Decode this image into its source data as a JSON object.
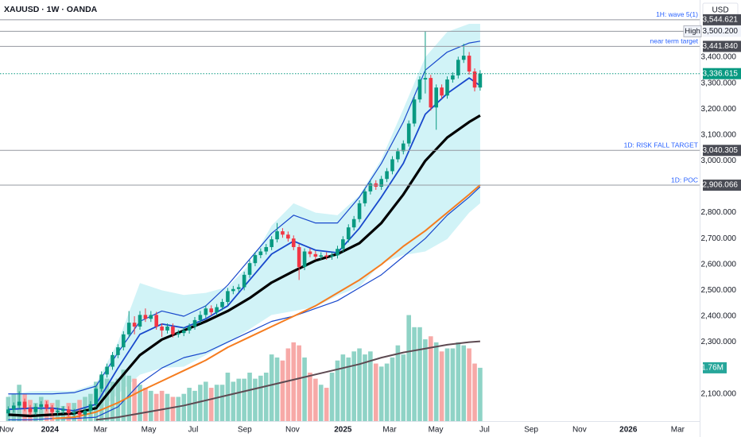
{
  "chart_data": {
    "type": "candlestick",
    "title": "XAUUSD · 1W · OANDA",
    "currency": "USD",
    "up_color": "#089981",
    "down_color": "#f23645",
    "xlim": [
      -1.5,
      126
    ],
    "ylim": [
      1995,
      3621
    ],
    "yticks": [
      {
        "value": 2100,
        "label": "2,100.000"
      },
      {
        "value": 2300,
        "label": "2,300.000"
      },
      {
        "value": 2400,
        "label": "2,400.000"
      },
      {
        "value": 2500,
        "label": "2,500.000"
      },
      {
        "value": 2600,
        "label": "2,600.000"
      },
      {
        "value": 2700,
        "label": "2,700.000"
      },
      {
        "value": 2800,
        "label": "2,800.000"
      },
      {
        "value": 3000,
        "label": "3,000.000"
      },
      {
        "value": 3100,
        "label": "3,100.000"
      },
      {
        "value": 3200,
        "label": "3,200.000"
      },
      {
        "value": 3300,
        "label": "3,300.000"
      },
      {
        "value": 3400,
        "label": "3,400.000"
      }
    ],
    "xticks": [
      {
        "value": -0.3,
        "label": "Nov"
      },
      {
        "value": 7.6,
        "label": "2024"
      },
      {
        "value": 16.8,
        "label": "Mar"
      },
      {
        "value": 25.6,
        "label": "May"
      },
      {
        "value": 33.7,
        "label": "Jul"
      },
      {
        "value": 43.1,
        "label": "Sep"
      },
      {
        "value": 51.8,
        "label": "Nov"
      },
      {
        "value": 61,
        "label": "2025"
      },
      {
        "value": 69.5,
        "label": "Mar"
      },
      {
        "value": 77.9,
        "label": "May"
      },
      {
        "value": 86.8,
        "label": "Jul"
      },
      {
        "value": 95.3,
        "label": "Sep"
      },
      {
        "value": 104.1,
        "label": "Nov"
      },
      {
        "value": 113,
        "label": "2026"
      },
      {
        "value": 122,
        "label": "Mar"
      }
    ],
    "x": [
      0,
      1,
      2,
      3,
      4,
      5,
      6,
      7,
      8,
      9,
      10,
      11,
      12,
      13,
      14,
      15,
      16,
      17,
      18,
      19,
      20,
      21,
      22,
      23,
      24,
      25,
      26,
      27,
      28,
      29,
      30,
      31,
      32,
      33,
      34,
      35,
      36,
      37,
      38,
      39,
      40,
      41,
      42,
      43,
      44,
      45,
      46,
      47,
      48,
      49,
      50,
      51,
      52,
      53,
      54,
      55,
      56,
      57,
      58,
      59,
      60,
      61,
      62,
      63,
      64,
      65,
      66,
      67,
      68,
      69,
      70,
      71,
      72,
      73,
      74,
      75,
      76,
      77,
      78,
      79,
      80,
      81,
      82,
      83,
      84,
      85,
      86
    ],
    "open": [
      2025,
      2040,
      2055,
      2070,
      2045,
      2030,
      2050,
      2060,
      2045,
      2030,
      2035,
      2040,
      2025,
      2030,
      2020,
      2035,
      2060,
      2120,
      2175,
      2205,
      2250,
      2280,
      2330,
      2375,
      2360,
      2405,
      2390,
      2405,
      2360,
      2345,
      2360,
      2330,
      2335,
      2345,
      2360,
      2385,
      2405,
      2430,
      2415,
      2435,
      2455,
      2497,
      2505,
      2512,
      2560,
      2605,
      2636,
      2650,
      2667,
      2697,
      2728,
      2715,
      2700,
      2667,
      2590,
      2650,
      2640,
      2630,
      2635,
      2630,
      2635,
      2660,
      2697,
      2743,
      2775,
      2836,
      2882,
      2913,
      2900,
      2930,
      2960,
      3006,
      3037,
      3067,
      3144,
      3237,
      3314,
      3320,
      3206,
      3283,
      3252,
      3314,
      3330,
      3390,
      3406,
      3345,
      3283
    ],
    "high": [
      2052,
      2067,
      2110,
      2082,
      2057,
      2062,
      2072,
      2072,
      2057,
      2047,
      2052,
      2052,
      2042,
      2042,
      2047,
      2072,
      2132,
      2187,
      2217,
      2262,
      2292,
      2342,
      2420,
      2400,
      2420,
      2430,
      2420,
      2417,
      2372,
      2372,
      2372,
      2347,
      2357,
      2372,
      2397,
      2420,
      2442,
      2442,
      2447,
      2467,
      2509,
      2517,
      2524,
      2572,
      2617,
      2648,
      2662,
      2679,
      2709,
      2760,
      2740,
      2727,
      2712,
      2679,
      2662,
      2662,
      2652,
      2647,
      2647,
      2647,
      2672,
      2709,
      2755,
      2787,
      2848,
      2894,
      2925,
      2925,
      2942,
      2972,
      3018,
      3049,
      3079,
      3156,
      3249,
      3326,
      3500.2,
      3332,
      3295,
      3295,
      3326,
      3342,
      3402,
      3452,
      3420,
      3357,
      3350
    ],
    "low": [
      2013,
      2028,
      2043,
      2033,
      2018,
      2018,
      2038,
      2033,
      2018,
      2018,
      2023,
      2013,
      2013,
      2008,
      2008,
      2023,
      2048,
      2108,
      2163,
      2193,
      2238,
      2268,
      2318,
      2330,
      2348,
      2378,
      2378,
      2348,
      2320,
      2333,
      2318,
      2318,
      2323,
      2333,
      2348,
      2373,
      2393,
      2403,
      2403,
      2423,
      2443,
      2485,
      2493,
      2500,
      2548,
      2593,
      2624,
      2638,
      2655,
      2685,
      2703,
      2688,
      2655,
      2540,
      2578,
      2628,
      2618,
      2618,
      2618,
      2618,
      2623,
      2648,
      2685,
      2731,
      2763,
      2824,
      2870,
      2888,
      2888,
      2918,
      2948,
      2994,
      3025,
      3055,
      3132,
      3225,
      3260,
      3194,
      3120,
      3240,
      3240,
      3302,
      3318,
      3378,
      3333,
      3268,
      3271
    ],
    "close": [
      2040,
      2055,
      2070,
      2045,
      2030,
      2050,
      2060,
      2045,
      2030,
      2035,
      2040,
      2025,
      2030,
      2020,
      2035,
      2060,
      2120,
      2175,
      2205,
      2250,
      2280,
      2330,
      2375,
      2360,
      2405,
      2390,
      2405,
      2360,
      2345,
      2360,
      2330,
      2335,
      2345,
      2360,
      2385,
      2405,
      2430,
      2415,
      2435,
      2455,
      2497,
      2505,
      2512,
      2560,
      2605,
      2636,
      2650,
      2667,
      2697,
      2728,
      2715,
      2700,
      2667,
      2590,
      2650,
      2640,
      2630,
      2635,
      2630,
      2635,
      2660,
      2697,
      2743,
      2775,
      2836,
      2882,
      2913,
      2900,
      2930,
      2960,
      3006,
      3037,
      3067,
      3144,
      3237,
      3314,
      3320,
      3206,
      3283,
      3252,
      3314,
      3330,
      3390,
      3406,
      3345,
      3283,
      3336.615
    ],
    "volume": {
      "ylim": [
        0,
        13.9
      ],
      "up_color": "#8fd3c6",
      "down_color": "#f7a9a7",
      "last_color": "#26a69a",
      "last_label": "1.76M",
      "values": [
        0.8,
        0.9,
        1.2,
        0.9,
        0.7,
        0.6,
        0.8,
        0.7,
        0.6,
        0.7,
        0.5,
        0.6,
        0.6,
        0.7,
        0.8,
        0.9,
        1.3,
        1.5,
        1.4,
        1.3,
        1.4,
        1.7,
        1.5,
        1.4,
        1.2,
        1.1,
        1.0,
        0.9,
        1.0,
        0.9,
        0.8,
        0.8,
        0.9,
        1.1,
        1.0,
        1.2,
        1.3,
        1.1,
        1.2,
        1.2,
        1.6,
        1.3,
        1.4,
        1.4,
        1.6,
        1.4,
        1.5,
        1.6,
        2.2,
        2.1,
        2.0,
        2.4,
        2.6,
        2.5,
        2.1,
        1.6,
        1.4,
        1.2,
        1.1,
        1.6,
        2.0,
        2.2,
        2.1,
        2.3,
        2.4,
        2.2,
        2.3,
        1.9,
        1.8,
        1.9,
        2.1,
        2.5,
        2.2,
        3.5,
        3.1,
        3.1,
        2.7,
        2.8,
        2.6,
        2.3,
        2.4,
        2.4,
        2.6,
        2.5,
        2.4,
        1.9,
        1.76
      ]
    },
    "line_x": [
      0,
      4,
      8,
      12,
      16,
      20,
      24,
      28,
      32,
      36,
      40,
      44,
      48,
      52,
      56,
      60,
      64,
      68,
      72,
      76,
      80,
      84,
      86
    ],
    "band": {
      "color": "#b2ebf2",
      "upper": [
        2097,
        2110,
        2112,
        2112,
        2140,
        2300,
        2528,
        2500,
        2482,
        2490,
        2513,
        2600,
        2750,
        2836,
        2800,
        2790,
        2867,
        3006,
        3200,
        3400,
        3498,
        3529,
        3529
      ],
      "lower": [
        2005,
        2005,
        2010,
        2015,
        2025,
        2100,
        2174,
        2200,
        2205,
        2250,
        2297,
        2350,
        2405,
        2420,
        2436,
        2480,
        2513,
        2605,
        2636,
        2650,
        2698,
        2800,
        2836
      ]
    },
    "lines": [
      {
        "color": "#5d4a52",
        "width": 2,
        "values": [
          null,
          null,
          null,
          null,
          2000,
          2010,
          2025,
          2040,
          2055,
          2075,
          2095,
          2115,
          2135,
          2155,
          2175,
          2195,
          2215,
          2240,
          2260,
          2275,
          2290,
          2300,
          2303
        ]
      },
      {
        "color": "#1848cc",
        "width": 1.2,
        "values": [
          2100,
          2100,
          2100,
          2105,
          2130,
          2260,
          2380,
          2420,
          2400,
          2440,
          2520,
          2620,
          2720,
          2790,
          2760,
          2760,
          2860,
          2990,
          3150,
          3350,
          3420,
          3455,
          3462
        ]
      },
      {
        "color": "#1848cc",
        "width": 1.2,
        "values": [
          2000,
          2000,
          2005,
          2005,
          2010,
          2050,
          2140,
          2200,
          2240,
          2260,
          2300,
          2340,
          2380,
          2400,
          2430,
          2460,
          2510,
          2560,
          2630,
          2700,
          2790,
          2860,
          2900
        ]
      },
      {
        "color": "#f57c1f",
        "width": 2,
        "values": [
          null,
          null,
          2005,
          2010,
          2030,
          2066,
          2110,
          2150,
          2190,
          2230,
          2280,
          2320,
          2360,
          2400,
          2440,
          2490,
          2540,
          2600,
          2670,
          2730,
          2800,
          2870,
          2907
        ]
      },
      {
        "color": "#000000",
        "width": 3.2,
        "values": [
          2020,
          2015,
          2020,
          2025,
          2045,
          2150,
          2250,
          2310,
          2345,
          2380,
          2420,
          2470,
          2530,
          2574,
          2615,
          2640,
          2682,
          2760,
          2870,
          3000,
          3090,
          3150,
          3175
        ]
      },
      {
        "color": "#1848cc",
        "width": 1.8,
        "values": [
          2040,
          2045,
          2045,
          2035,
          2060,
          2200,
          2330,
          2370,
          2355,
          2390,
          2440,
          2540,
          2640,
          2690,
          2655,
          2645,
          2740,
          2860,
          2990,
          3180,
          3260,
          3320,
          3290
        ]
      }
    ],
    "levels": [
      {
        "label": "1H: wave 5(1)",
        "value": 3544.621,
        "tag": "3,544.621",
        "style": "text"
      },
      {
        "label": "High",
        "value": 3500.2,
        "tag": "3,500.200",
        "style": "box"
      },
      {
        "label": "near term target",
        "value": 3441.84,
        "tag": "3,441.840",
        "style": "text"
      },
      {
        "label": "1D: RISK FALL TARGET",
        "value": 3040.305,
        "tag": "3,040.305",
        "style": "text"
      },
      {
        "label": "1D: POC",
        "value": 2906.066,
        "tag": "2,906.066",
        "style": "text"
      }
    ],
    "last_price": {
      "value": 3336.615,
      "label": "3,336.615"
    }
  }
}
